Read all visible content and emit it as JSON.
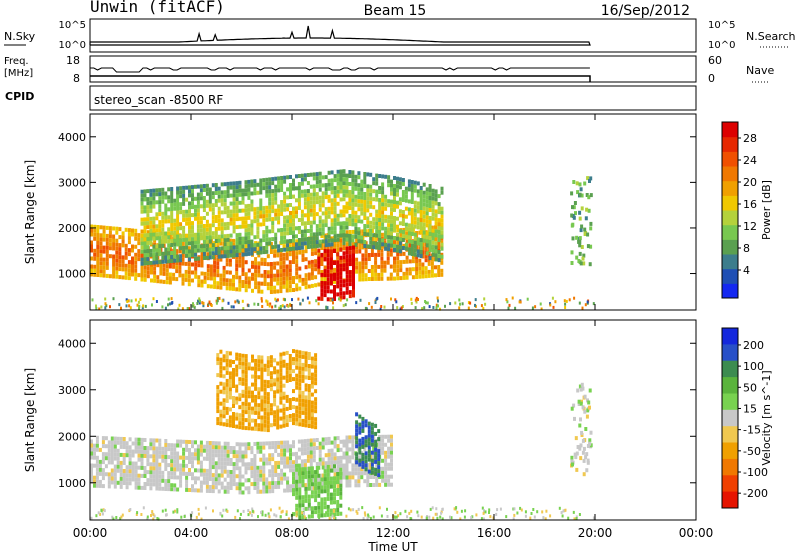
{
  "header": {
    "station": "Unwin (fitACF)",
    "beam": "Beam 15",
    "date": "16/Sep/2012"
  },
  "nsky_panel": {
    "left_label": "N.Sky",
    "right_label": "N.Search",
    "left_ticks": [
      "10^5",
      "10^0"
    ],
    "right_ticks": [
      "10^5",
      "10^0"
    ]
  },
  "freq_panel": {
    "left_label_1": "Freq.",
    "left_label_2": "[MHz]",
    "right_label": "Nave",
    "left_ticks": [
      "18",
      "8"
    ],
    "right_ticks": [
      "60",
      "0"
    ]
  },
  "cpid": {
    "label": "CPID",
    "value": "stereo_scan -8500 RF"
  },
  "chart_data": [
    {
      "type": "heatmap",
      "panel": "power",
      "ylabel": "Slant Range [km]",
      "xlabel": "",
      "colorbar_label": "Power [dB]",
      "xlim": [
        0,
        24
      ],
      "ylim": [
        200,
        4500
      ],
      "x_ticks": [
        0,
        4,
        8,
        12,
        16,
        20,
        24
      ],
      "y_ticks": [
        1000,
        2000,
        3000,
        4000
      ],
      "y_tick_labels": [
        "1000",
        "2000",
        "3000",
        "4000"
      ],
      "colorbar_ticks": [
        "4",
        "8",
        "12",
        "16",
        "20",
        "24",
        "28"
      ],
      "colorbar_colors": [
        "#1428f0",
        "#1f4fb4",
        "#3c7d8c",
        "#5aa050",
        "#78c850",
        "#b4d23c",
        "#f0c800",
        "#f0a000",
        "#f07800",
        "#f05000",
        "#e62800",
        "#dc0000"
      ],
      "features": [
        {
          "name": "main-band",
          "points": [
            [
              0,
              1550
            ],
            [
              1,
              1500
            ],
            [
              2,
              1440
            ],
            [
              3,
              1380
            ],
            [
              4,
              1330
            ],
            [
              5,
              1270
            ],
            [
              6,
              1210
            ],
            [
              7,
              1160
            ],
            [
              8,
              1210
            ],
            [
              9,
              1330
            ],
            [
              10,
              1420
            ],
            [
              11,
              1450
            ],
            [
              12,
              1460
            ],
            [
              13,
              1500
            ],
            [
              14,
              1550
            ]
          ],
          "value": 18
        },
        {
          "name": "upper-band",
          "points": [
            [
              2,
              2050
            ],
            [
              4,
              2150
            ],
            [
              6,
              2250
            ],
            [
              8,
              2380
            ],
            [
              10,
              2500
            ],
            [
              12,
              2350
            ],
            [
              14,
              2100
            ]
          ],
          "value": 9
        },
        {
          "name": "bright-patch",
          "points": [
            [
              9,
              1020
            ],
            [
              9.5,
              1000
            ],
            [
              10,
              1050
            ],
            [
              10.5,
              1100
            ]
          ],
          "value": 28
        }
      ]
    },
    {
      "type": "heatmap",
      "panel": "velocity",
      "ylabel": "Slant Range [km]",
      "xlabel": "Time UT",
      "colorbar_label": "Velocity [m s^-1]",
      "xlim": [
        0,
        24
      ],
      "ylim": [
        200,
        4500
      ],
      "x_ticks": [
        0,
        4,
        8,
        12,
        16,
        20,
        24
      ],
      "x_tick_labels": [
        "00:00",
        "04:00",
        "08:00",
        "12:00",
        "16:00",
        "20:00",
        "00:00"
      ],
      "y_ticks": [
        1000,
        2000,
        3000,
        4000
      ],
      "y_tick_labels": [
        "1000",
        "2000",
        "3000",
        "4000"
      ],
      "colorbar_ticks": [
        "200",
        "100",
        "50",
        "15",
        "-15",
        "-50",
        "-100",
        "-200"
      ],
      "colorbar_colors": [
        "#1428dc",
        "#2850c8",
        "#3c8c50",
        "#5ab43c",
        "#78d250",
        "#c8c8c8",
        "#f0c850",
        "#f0a000",
        "#f07800",
        "#f04000",
        "#e61400"
      ],
      "features": [
        {
          "name": "main-band",
          "points": [
            [
              0,
              1500
            ],
            [
              2,
              1450
            ],
            [
              4,
              1400
            ],
            [
              6,
              1350
            ],
            [
              8,
              1400
            ],
            [
              10,
              1500
            ],
            [
              12,
              1520
            ]
          ],
          "value": 0
        },
        {
          "name": "upper-orange",
          "points": [
            [
              5,
              3100
            ],
            [
              6,
              3000
            ],
            [
              7,
              2950
            ],
            [
              8,
              3100
            ],
            [
              9,
              3000
            ]
          ],
          "value": -60
        },
        {
          "name": "blue-patch",
          "points": [
            [
              10.5,
              2000
            ],
            [
              11,
              1800
            ],
            [
              11.5,
              1700
            ]
          ],
          "value": 150
        },
        {
          "name": "green-patch",
          "points": [
            [
              8,
              800
            ],
            [
              9,
              850
            ],
            [
              10,
              900
            ]
          ],
          "value": 40
        }
      ]
    }
  ]
}
